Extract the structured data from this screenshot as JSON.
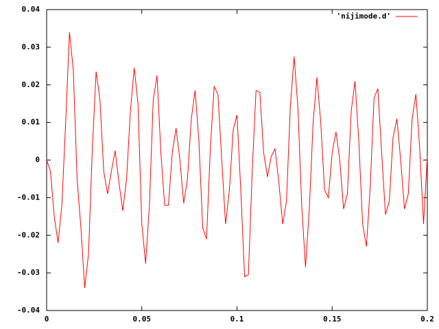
{
  "chart_data": {
    "type": "line",
    "x": [
      0,
      0.002,
      0.004,
      0.006,
      0.008,
      0.01,
      0.012,
      0.014,
      0.016,
      0.018,
      0.02,
      0.022,
      0.024,
      0.026,
      0.028,
      0.03,
      0.032,
      0.034,
      0.036,
      0.038,
      0.04,
      0.042,
      0.044,
      0.046,
      0.048,
      0.05,
      0.052,
      0.054,
      0.056,
      0.058,
      0.06,
      0.062,
      0.064,
      0.066,
      0.068,
      0.07,
      0.072,
      0.074,
      0.076,
      0.078,
      0.08,
      0.082,
      0.084,
      0.086,
      0.088,
      0.09,
      0.092,
      0.094,
      0.096,
      0.098,
      0.1,
      0.102,
      0.104,
      0.106,
      0.108,
      0.11,
      0.112,
      0.114,
      0.116,
      0.118,
      0.12,
      0.122,
      0.124,
      0.126,
      0.128,
      0.13,
      0.132,
      0.134,
      0.136,
      0.138,
      0.14,
      0.142,
      0.144,
      0.146,
      0.148,
      0.15,
      0.152,
      0.154,
      0.156,
      0.158,
      0.16,
      0.162,
      0.164,
      0.166,
      0.168,
      0.17,
      0.172,
      0.174,
      0.176,
      0.178,
      0.18,
      0.182,
      0.184,
      0.186,
      0.188,
      0.19,
      0.192,
      0.194,
      0.196,
      0.198,
      0.2
    ],
    "series": [
      {
        "name": "'nijimode.d'",
        "color": "#ff0000",
        "values": [
          0,
          -0.003,
          -0.015,
          -0.022,
          -0.012,
          0.01,
          0.034,
          0.024,
          -0.005,
          -0.018,
          -0.034,
          -0.025,
          0.003,
          0.0235,
          0.016,
          -0.003,
          -0.009,
          -0.003,
          0.0025,
          -0.006,
          -0.0135,
          -0.005,
          0.013,
          0.0245,
          0.015,
          -0.017,
          -0.0275,
          -0.012,
          0.016,
          0.0225,
          0.002,
          -0.012,
          -0.012,
          0.002,
          0.0085,
          0,
          -0.0115,
          -0.005,
          0.011,
          0.0185,
          0.005,
          -0.018,
          -0.021,
          0.003,
          0.0195,
          0.0175,
          0,
          -0.017,
          -0.008,
          0.008,
          0.012,
          -0.008,
          -0.031,
          -0.0305,
          -0.003,
          0.0185,
          0.018,
          0.002,
          -0.0045,
          0.001,
          0.003,
          -0.006,
          -0.017,
          -0.011,
          0.014,
          0.0275,
          0.014,
          -0.012,
          -0.0285,
          -0.013,
          0.01,
          0.022,
          0.01,
          -0.008,
          -0.01,
          0.002,
          0.0075,
          0,
          -0.013,
          -0.009,
          0.013,
          0.021,
          0.005,
          -0.017,
          -0.023,
          -0.007,
          0.0165,
          0.019,
          0.002,
          -0.0145,
          -0.011,
          0.006,
          0.011,
          0,
          -0.013,
          -0.009,
          0.011,
          0.0175,
          0.003,
          -0.017,
          0.001
        ]
      }
    ],
    "xlim": [
      0,
      0.2
    ],
    "xticks": [
      0,
      0.05,
      0.1,
      0.15,
      0.2
    ],
    "ylim": [
      -0.04,
      0.04
    ],
    "yticks": [
      -0.04,
      -0.03,
      -0.02,
      -0.01,
      0,
      0.01,
      0.02,
      0.03,
      0.04
    ],
    "legend": "top-right"
  }
}
